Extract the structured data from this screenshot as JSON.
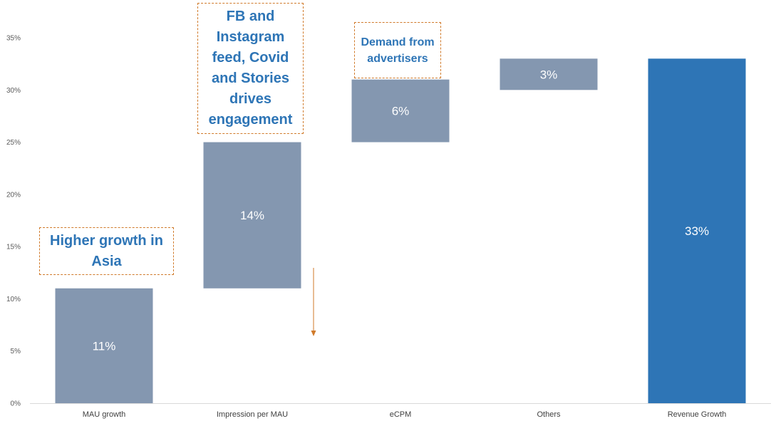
{
  "chart_data": {
    "type": "bar",
    "subtype": "waterfall",
    "categories": [
      "MAU growth",
      "Impression per MAU",
      "eCPM",
      "Others",
      "Revenue Growth"
    ],
    "series": [
      {
        "values": [
          11,
          14,
          6,
          3,
          33
        ],
        "bases": [
          0,
          11,
          25,
          30,
          0
        ],
        "labels": [
          "11%",
          "14%",
          "6%",
          "3%",
          "33%"
        ],
        "kinds": [
          "increment",
          "increment",
          "increment",
          "increment",
          "total"
        ]
      }
    ],
    "yticks": [
      "0%",
      "5%",
      "10%",
      "15%",
      "20%",
      "25%",
      "30%",
      "35%"
    ],
    "ylim": [
      0,
      35
    ],
    "grid": false,
    "legend": "none",
    "colors": {
      "increment": "#8497b0",
      "total": "#2e75b6",
      "note_text": "#2e75b6",
      "note_border": "#d07a2a",
      "arrow": "#d07a2a"
    },
    "annotations": [
      {
        "text": "Higher growth in Asia"
      },
      {
        "text": "FB and Instagram feed, Covid and Stories drives engagement"
      },
      {
        "text": "Demand from advertisers"
      }
    ]
  }
}
